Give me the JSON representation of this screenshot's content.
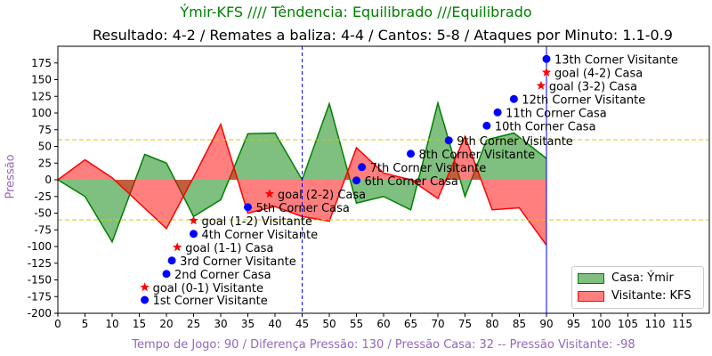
{
  "header": {
    "title": "Ýmir-KFS //// Têndencia: Equilibrado ///Equilibrado",
    "subtitle": "Resultado: 4-2 / Remates a baliza: 4-4 / Cantos: 5-8 / Ataques por Minuto: 1.1-0.9"
  },
  "colors": {
    "home_fill": "#008000",
    "away_fill": "#ff0000",
    "threshold": "#cccc00",
    "halftime": "#0000ff",
    "event_point": "#0000ff",
    "goal_star": "#ff0000",
    "title_color": "#008000",
    "label_color": "#9467bd"
  },
  "chart_data": {
    "type": "area",
    "xlabel": "Tempo de Jogo: 90 / Diferença Pressão: 130 / Pressão Casa: 32 -- Pressão Visitante: -98",
    "ylabel": "Pressão",
    "xlim": [
      0,
      120
    ],
    "ylim": [
      -200,
      200
    ],
    "x_ticks": [
      0,
      5,
      10,
      15,
      20,
      25,
      30,
      35,
      40,
      45,
      50,
      55,
      60,
      65,
      70,
      75,
      80,
      85,
      90,
      95,
      100,
      105,
      110,
      115
    ],
    "y_ticks": [
      -200,
      -175,
      -150,
      -125,
      -100,
      -75,
      -50,
      -25,
      0,
      25,
      50,
      75,
      100,
      125,
      150,
      175
    ],
    "thresholds": [
      60,
      -60
    ],
    "vertical_lines": [
      45,
      90
    ],
    "series": [
      {
        "name": "Casa: Ýmir",
        "x": [
          0,
          5,
          10,
          16,
          20,
          25,
          30,
          35,
          40,
          45,
          50,
          55,
          60,
          65,
          70,
          75,
          79,
          84,
          90
        ],
        "values": [
          0,
          -25,
          -93,
          38,
          25,
          -55,
          -30,
          69,
          70,
          0,
          114,
          -35,
          -25,
          -45,
          115,
          -25,
          60,
          70,
          32
        ]
      },
      {
        "name": "Visitante: KFS",
        "x": [
          0,
          5,
          10,
          15,
          20,
          25,
          30,
          35,
          40,
          45,
          50,
          55,
          60,
          65,
          70,
          75,
          80,
          85,
          90
        ],
        "values": [
          0,
          30,
          3,
          -35,
          -73,
          4,
          83,
          -50,
          -40,
          -55,
          -62,
          48,
          10,
          0,
          -28,
          65,
          -45,
          -42,
          -98
        ]
      }
    ],
    "events": [
      {
        "minute": 16,
        "y": -180,
        "kind": "point",
        "label": "1st Corner Visitante"
      },
      {
        "minute": 16,
        "y": -161,
        "kind": "goal",
        "label": "goal (0-1) Visitante"
      },
      {
        "minute": 20,
        "y": -141,
        "kind": "point",
        "label": "2nd Corner Casa"
      },
      {
        "minute": 21,
        "y": -121,
        "kind": "point",
        "label": "3rd Corner Visitante"
      },
      {
        "minute": 22,
        "y": -101,
        "kind": "goal",
        "label": "goal (1-1) Casa"
      },
      {
        "minute": 25,
        "y": -81,
        "kind": "point",
        "label": "4th Corner Visitante"
      },
      {
        "minute": 25,
        "y": -61,
        "kind": "goal",
        "label": "goal (1-2) Visitante"
      },
      {
        "minute": 35,
        "y": -41,
        "kind": "point",
        "label": "5th Corner Casa"
      },
      {
        "minute": 39,
        "y": -21,
        "kind": "goal",
        "label": "goal (2-2) Casa"
      },
      {
        "minute": 55,
        "y": -1,
        "kind": "point",
        "label": "6th Corner Casa"
      },
      {
        "minute": 56,
        "y": 19,
        "kind": "point",
        "label": "7th Corner Visitante"
      },
      {
        "minute": 65,
        "y": 39,
        "kind": "point",
        "label": "8th Corner Visitante"
      },
      {
        "minute": 72,
        "y": 59,
        "kind": "point",
        "label": "9th Corner Visitante"
      },
      {
        "minute": 79,
        "y": 81,
        "kind": "point",
        "label": "10th Corner Casa"
      },
      {
        "minute": 81,
        "y": 101,
        "kind": "point",
        "label": "11th Corner Casa"
      },
      {
        "minute": 84,
        "y": 121,
        "kind": "point",
        "label": "12th Corner Visitante"
      },
      {
        "minute": 89,
        "y": 141,
        "kind": "goal",
        "label": "goal (3-2) Casa"
      },
      {
        "minute": 90,
        "y": 161,
        "kind": "goal",
        "label": "goal (4-2) Casa"
      },
      {
        "minute": 90,
        "y": 181,
        "kind": "point",
        "label": "13th Corner Visitante"
      }
    ]
  }
}
